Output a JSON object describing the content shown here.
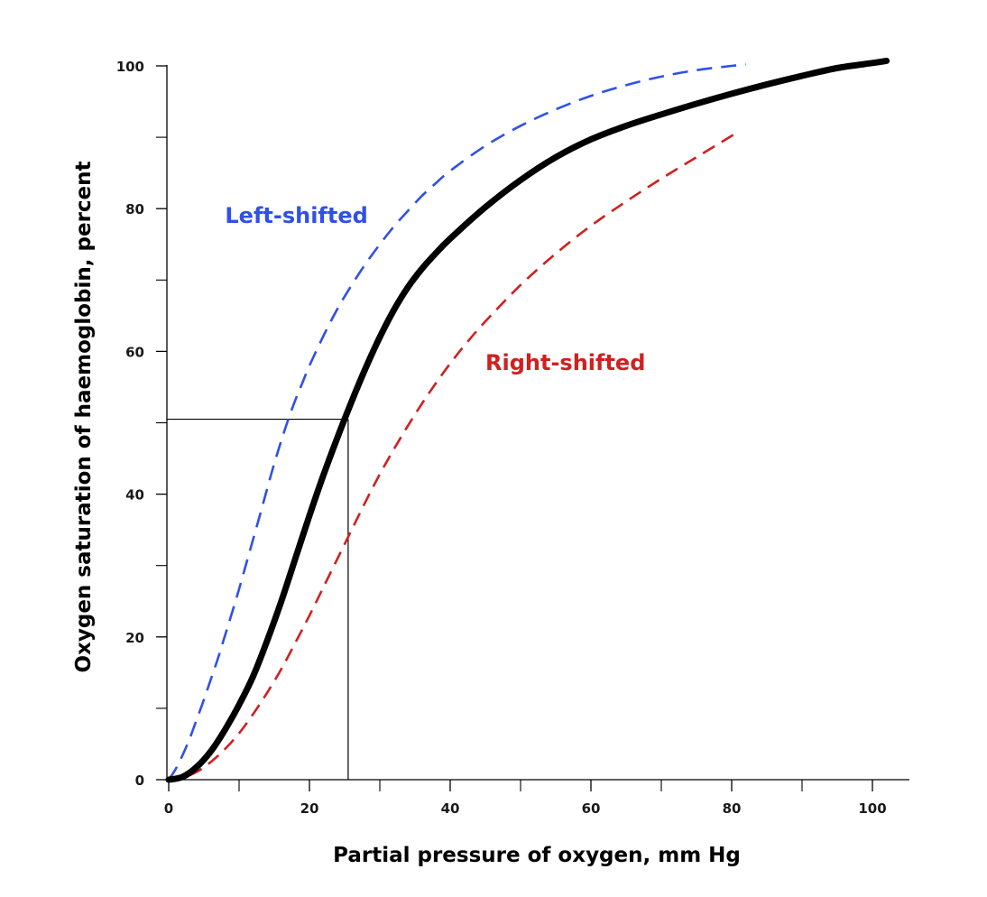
{
  "chart_data": {
    "type": "line",
    "title": "",
    "xlabel": "Partial pressure of oxygen, mm Hg",
    "ylabel": "Oxygen saturation of haemoglobin, percent",
    "xlim": [
      0,
      105
    ],
    "ylim": [
      0,
      100
    ],
    "x_ticks": [
      0,
      20,
      40,
      60,
      80,
      100
    ],
    "x_minor_ticks": [
      10,
      30,
      50,
      70,
      90
    ],
    "y_ticks": [
      0,
      20,
      40,
      60,
      80,
      100
    ],
    "y_minor_ticks": [
      10,
      30,
      50,
      70,
      90
    ],
    "grid": false,
    "legend": "none",
    "series": [
      {
        "key": "normal",
        "style": "solid",
        "color": "#000000",
        "points": [
          [
            0,
            0
          ],
          [
            2,
            0.4
          ],
          [
            4,
            1.8
          ],
          [
            6,
            4
          ],
          [
            8,
            7
          ],
          [
            10,
            10.5
          ],
          [
            12,
            14.5
          ],
          [
            14,
            19.5
          ],
          [
            16,
            25
          ],
          [
            18,
            31
          ],
          [
            20,
            37
          ],
          [
            22,
            42.7
          ],
          [
            24,
            48
          ],
          [
            26,
            53
          ],
          [
            28,
            57.7
          ],
          [
            30,
            62
          ],
          [
            32,
            65.8
          ],
          [
            34,
            69
          ],
          [
            36,
            71.6
          ],
          [
            38,
            73.8
          ],
          [
            40,
            75.8
          ],
          [
            45,
            80.2
          ],
          [
            50,
            84
          ],
          [
            55,
            87.2
          ],
          [
            60,
            89.7
          ],
          [
            65,
            91.6
          ],
          [
            70,
            93.2
          ],
          [
            75,
            94.7
          ],
          [
            80,
            96.1
          ],
          [
            85,
            97.4
          ],
          [
            90,
            98.6
          ],
          [
            95,
            99.7
          ],
          [
            100,
            100.4
          ],
          [
            102,
            100.7
          ]
        ]
      },
      {
        "key": "left",
        "name": "Left-shifted",
        "style": "dashed",
        "color": "#3050e8",
        "label_position": [
          8,
          78
        ],
        "points": [
          [
            0,
            0
          ],
          [
            1,
            1.5
          ],
          [
            2,
            3.5
          ],
          [
            3,
            5.8
          ],
          [
            4,
            8.5
          ],
          [
            5,
            11.2
          ],
          [
            6,
            14.1
          ],
          [
            7,
            17
          ],
          [
            8,
            20.2
          ],
          [
            9,
            23.4
          ],
          [
            10,
            26.7
          ],
          [
            11,
            30.2
          ],
          [
            12,
            33.7
          ],
          [
            13,
            37.2
          ],
          [
            14,
            40.8
          ],
          [
            15,
            44.3
          ],
          [
            16,
            47.5
          ],
          [
            17,
            50.5
          ],
          [
            18,
            53.2
          ],
          [
            19,
            55.6
          ],
          [
            20,
            58
          ],
          [
            22,
            62.2
          ],
          [
            24,
            66
          ],
          [
            26,
            69.3
          ],
          [
            28,
            72.3
          ],
          [
            30,
            75
          ],
          [
            32,
            77.5
          ],
          [
            34,
            79.7
          ],
          [
            36,
            81.8
          ],
          [
            38,
            83.6
          ],
          [
            40,
            85.3
          ],
          [
            45,
            88.8
          ],
          [
            50,
            91.6
          ],
          [
            55,
            93.9
          ],
          [
            60,
            95.8
          ],
          [
            65,
            97.3
          ],
          [
            70,
            98.5
          ],
          [
            75,
            99.4
          ],
          [
            80,
            100
          ],
          [
            82,
            100.2
          ]
        ]
      },
      {
        "key": "right",
        "name": "Right-shifted",
        "style": "dashed",
        "color": "#d02020",
        "label_position": [
          45,
          57.4
        ],
        "points": [
          [
            0,
            0
          ],
          [
            2,
            0.3
          ],
          [
            4,
            1.1
          ],
          [
            6,
            2.5
          ],
          [
            8,
            4.3
          ],
          [
            10,
            6.5
          ],
          [
            12,
            9.2
          ],
          [
            14,
            12.2
          ],
          [
            16,
            15.5
          ],
          [
            18,
            19.2
          ],
          [
            20,
            23
          ],
          [
            22,
            27
          ],
          [
            24,
            31
          ],
          [
            26,
            35
          ],
          [
            28,
            39
          ],
          [
            30,
            42.8
          ],
          [
            32,
            46.3
          ],
          [
            34,
            49.6
          ],
          [
            36,
            52.7
          ],
          [
            38,
            55.6
          ],
          [
            40,
            58.3
          ],
          [
            42,
            60.8
          ],
          [
            45,
            64.2
          ],
          [
            50,
            69.3
          ],
          [
            55,
            73.7
          ],
          [
            60,
            77.6
          ],
          [
            65,
            81
          ],
          [
            70,
            84.2
          ],
          [
            75,
            87.2
          ],
          [
            80,
            90.2
          ],
          [
            81,
            90.8
          ]
        ]
      }
    ],
    "reference_lines": {
      "x": 25.5,
      "y": 50.5
    }
  }
}
